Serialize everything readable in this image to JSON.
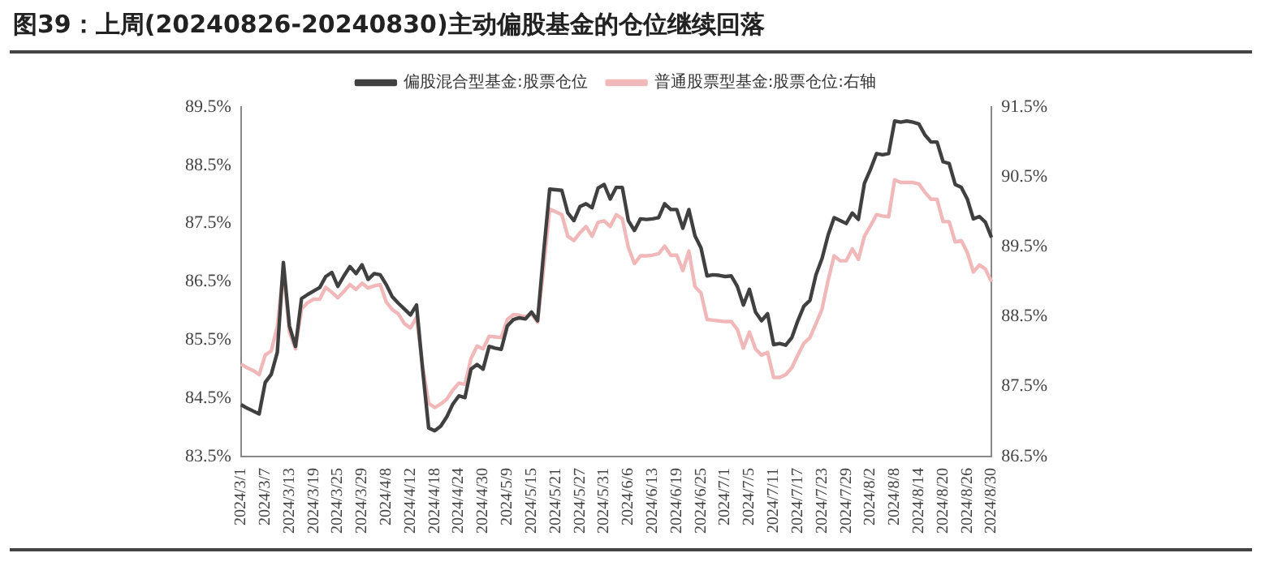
{
  "chart_data": {
    "type": "line",
    "title": "图39：上周(20240826-20240830)主动偏股基金的仓位继续回落",
    "categories": [
      "2024/3/1",
      null,
      null,
      null,
      "2024/3/7",
      null,
      null,
      null,
      "2024/3/13",
      null,
      null,
      null,
      "2024/3/19",
      null,
      null,
      null,
      "2024/3/25",
      null,
      null,
      null,
      "2024/3/29",
      null,
      null,
      null,
      "2024/4/8",
      null,
      null,
      null,
      "2024/4/12",
      null,
      null,
      null,
      "2024/4/18",
      null,
      null,
      null,
      "2024/4/24",
      null,
      null,
      null,
      "2024/4/30",
      null,
      null,
      null,
      "2024/5/9",
      null,
      null,
      null,
      "2024/5/15",
      null,
      null,
      null,
      "2024/5/21",
      null,
      null,
      null,
      "2024/5/27",
      null,
      null,
      null,
      "2024/5/31",
      null,
      null,
      null,
      "2024/6/6",
      null,
      null,
      null,
      "2024/6/13",
      null,
      null,
      null,
      "2024/6/19",
      null,
      null,
      null,
      "2024/6/25",
      null,
      null,
      null,
      "2024/7/1",
      null,
      null,
      null,
      "2024/7/5",
      null,
      null,
      null,
      "2024/7/11",
      null,
      null,
      null,
      "2024/7/17",
      null,
      null,
      null,
      "2024/7/23",
      null,
      null,
      null,
      "2024/7/29",
      null,
      null,
      null,
      "2024/8/2",
      null,
      null,
      null,
      "2024/8/8",
      null,
      null,
      null,
      "2024/8/14",
      null,
      null,
      null,
      "2024/8/20",
      null,
      null,
      null,
      "2024/8/26",
      null,
      null,
      null,
      "2024/8/30"
    ],
    "series": [
      {
        "name": "偏股混合型基金:股票仓位",
        "color": "#404040",
        "values": [
          84.39,
          84.33,
          84.28,
          84.23,
          84.77,
          84.91,
          85.29,
          86.83,
          85.74,
          85.39,
          86.21,
          86.28,
          86.34,
          86.4,
          86.59,
          86.66,
          86.42,
          86.6,
          86.76,
          86.64,
          86.79,
          86.54,
          86.64,
          86.62,
          86.45,
          86.24,
          86.13,
          86.03,
          85.93,
          86.1,
          85.0,
          83.99,
          83.94,
          84.02,
          84.18,
          84.4,
          84.54,
          84.51,
          85.0,
          85.08,
          85.0,
          85.39,
          85.36,
          85.34,
          85.74,
          85.85,
          85.88,
          85.86,
          85.98,
          85.83,
          87.0,
          88.09,
          88.08,
          88.07,
          87.68,
          87.55,
          87.79,
          87.84,
          87.77,
          88.11,
          88.17,
          87.92,
          88.12,
          88.12,
          87.55,
          87.38,
          87.58,
          87.57,
          87.58,
          87.6,
          87.84,
          87.74,
          87.74,
          87.42,
          87.74,
          87.29,
          87.08,
          86.6,
          86.62,
          86.61,
          86.59,
          86.6,
          86.42,
          86.1,
          86.37,
          85.98,
          85.83,
          85.95,
          85.42,
          85.44,
          85.41,
          85.54,
          85.83,
          86.08,
          86.18,
          86.62,
          86.9,
          87.3,
          87.6,
          87.55,
          87.5,
          87.68,
          87.57,
          88.19,
          88.43,
          88.7,
          88.68,
          88.7,
          89.26,
          89.24,
          89.26,
          89.24,
          89.21,
          89.02,
          88.9,
          88.9,
          88.56,
          88.53,
          88.17,
          88.12,
          87.92,
          87.58,
          87.62,
          87.52,
          87.26
        ]
      },
      {
        "name": "普通股票型基金:股票仓位:右轴",
        "color": "#f0b8b8",
        "axis": "y2",
        "values": [
          87.82,
          87.77,
          87.73,
          87.67,
          87.95,
          88.01,
          88.36,
          89.18,
          88.28,
          88.04,
          88.61,
          88.7,
          88.75,
          88.75,
          88.92,
          88.85,
          88.77,
          88.86,
          88.96,
          88.89,
          88.98,
          88.91,
          88.94,
          88.96,
          88.71,
          88.6,
          88.54,
          88.4,
          88.34,
          88.49,
          87.8,
          87.26,
          87.2,
          87.25,
          87.32,
          87.45,
          87.55,
          87.53,
          87.9,
          88.08,
          88.04,
          88.22,
          88.21,
          88.2,
          88.46,
          88.53,
          88.52,
          88.5,
          88.54,
          88.42,
          89.2,
          90.04,
          90.0,
          89.96,
          89.65,
          89.59,
          89.7,
          89.79,
          89.65,
          89.85,
          89.87,
          89.79,
          89.96,
          89.9,
          89.49,
          89.26,
          89.37,
          89.37,
          89.38,
          89.4,
          89.51,
          89.38,
          89.38,
          89.16,
          89.44,
          88.93,
          88.84,
          88.46,
          88.45,
          88.44,
          88.43,
          88.43,
          88.32,
          88.05,
          88.28,
          88.04,
          87.95,
          87.99,
          87.63,
          87.63,
          87.67,
          87.77,
          87.95,
          88.12,
          88.2,
          88.4,
          88.61,
          89.02,
          89.37,
          89.3,
          89.3,
          89.47,
          89.32,
          89.65,
          89.8,
          89.96,
          89.94,
          89.93,
          90.46,
          90.42,
          90.42,
          90.42,
          90.4,
          90.28,
          90.18,
          90.18,
          89.86,
          89.86,
          89.57,
          89.59,
          89.42,
          89.14,
          89.24,
          89.18,
          89.0
        ]
      }
    ],
    "ylim": [
      83.5,
      89.5
    ],
    "yticks": [
      {
        "value": 83.5,
        "label": "83.5%"
      },
      {
        "value": 84.5,
        "label": "84.5%"
      },
      {
        "value": 85.5,
        "label": "85.5%"
      },
      {
        "value": 86.5,
        "label": "86.5%"
      },
      {
        "value": 87.5,
        "label": "87.5%"
      },
      {
        "value": 88.5,
        "label": "88.5%"
      },
      {
        "value": 89.5,
        "label": "89.5%"
      }
    ],
    "y2lim": [
      86.5,
      91.5
    ],
    "y2ticks": [
      {
        "value": 86.5,
        "label": "86.5%"
      },
      {
        "value": 87.5,
        "label": "87.5%"
      },
      {
        "value": 88.5,
        "label": "88.5%"
      },
      {
        "value": 89.5,
        "label": "89.5%"
      },
      {
        "value": 90.5,
        "label": "90.5%"
      },
      {
        "value": 91.5,
        "label": "91.5%"
      }
    ],
    "grid": false,
    "legend": "top",
    "marker": "none",
    "line_style": "solid"
  }
}
